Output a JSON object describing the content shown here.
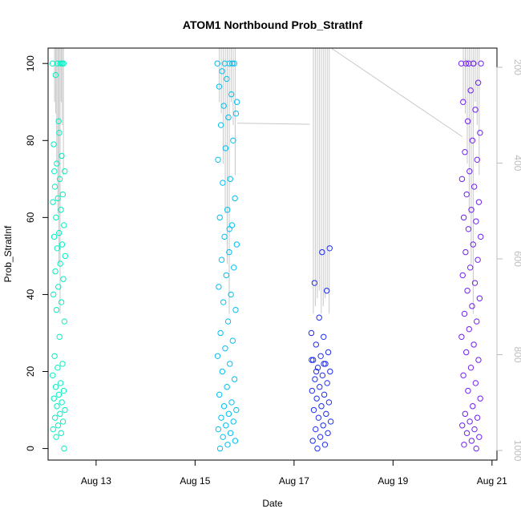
{
  "chart_data": {
    "type": "scatter",
    "title": "ATOM1 Northbound Prob_StratInf",
    "xlabel": "Date",
    "ylabel": "Prob_StratInf",
    "x_ticks": [
      "Aug 13",
      "Aug 15",
      "Aug 17",
      "Aug 19",
      "Aug 21"
    ],
    "x_tick_days": [
      13,
      15,
      17,
      19,
      21
    ],
    "xlim_days": [
      12.03,
      21.1
    ],
    "ylim": [
      -3,
      104
    ],
    "y_ticks": [
      0,
      20,
      40,
      60,
      80,
      100
    ],
    "right_axis": {
      "ticks": [
        200,
        400,
        600,
        800,
        1000
      ],
      "range": [
        160,
        1020
      ],
      "reversed": true,
      "color": "#bdbdbd"
    },
    "grid": false,
    "legend": "none",
    "profile_line_color": "#c8c8c8",
    "series": [
      {
        "color": "#00f0c0",
        "day_start": 12.12,
        "day_end": 12.38,
        "values": [
          100,
          100,
          97,
          100,
          85,
          79,
          76,
          74,
          72,
          70,
          68,
          66,
          65,
          64,
          62,
          60,
          58,
          56,
          55,
          53,
          52,
          50,
          48,
          46,
          44,
          42,
          40,
          38,
          36,
          33,
          29,
          24,
          22,
          21,
          19,
          17,
          16,
          15,
          14,
          13,
          12,
          11,
          10,
          9,
          8,
          7,
          6,
          5,
          4,
          3,
          0,
          82,
          72,
          100,
          100
        ]
      },
      {
        "color": "#00bff0",
        "day_start": 15.45,
        "day_end": 15.85,
        "values": [
          100,
          100,
          98,
          100,
          96,
          94,
          92,
          89,
          87,
          86,
          84,
          80,
          78,
          75,
          70,
          69,
          65,
          62,
          60,
          58,
          55,
          53,
          51,
          49,
          47,
          45,
          42,
          40,
          38,
          36,
          33,
          30,
          28,
          26,
          24,
          22,
          20,
          18,
          16,
          14,
          12,
          11,
          10,
          9,
          8,
          7,
          6,
          5,
          4,
          3,
          2,
          1,
          0,
          100,
          100,
          90,
          57
        ]
      },
      {
        "color": "#1e2df0",
        "day_start": 17.35,
        "day_end": 17.75,
        "values": [
          30,
          29,
          27,
          25,
          24,
          23,
          22,
          21,
          20,
          19,
          18,
          17,
          16,
          15,
          14,
          13,
          12,
          11,
          10,
          9,
          8,
          7,
          6,
          5,
          4,
          3,
          2,
          1,
          0,
          52,
          51,
          43,
          41,
          34,
          23,
          22,
          20
        ]
      },
      {
        "color": "#7020f0",
        "day_start": 20.38,
        "day_end": 20.78,
        "values": [
          100,
          100,
          100,
          95,
          93,
          90,
          88,
          85,
          82,
          80,
          77,
          75,
          72,
          70,
          68,
          66,
          64,
          62,
          60,
          59,
          57,
          55,
          53,
          51,
          49,
          47,
          45,
          43,
          41,
          39,
          37,
          35,
          33,
          31,
          29,
          27,
          25,
          23,
          21,
          19,
          17,
          15,
          13,
          11,
          9,
          8,
          7,
          6,
          5,
          4,
          3,
          2,
          1,
          0,
          100,
          100,
          100
        ]
      }
    ]
  }
}
